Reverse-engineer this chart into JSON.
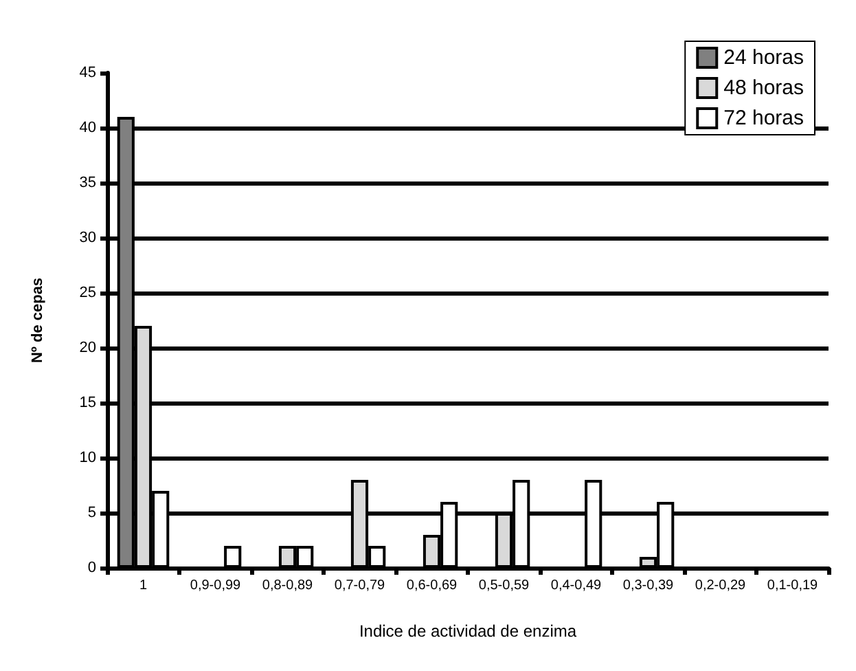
{
  "chart_data": {
    "type": "bar",
    "xlabel": "Indice de actividad de enzima",
    "ylabel": "Nº de cepas",
    "categories": [
      "1",
      "0,9-0,99",
      "0,8-0,89",
      "0,7-0,79",
      "0,6-0,69",
      "0,5-0,59",
      "0,4-0,49",
      "0,3-0,39",
      "0,2-0,29",
      "0,1-0,19"
    ],
    "series": [
      {
        "name": "24 horas",
        "color": "#808080",
        "values": [
          41,
          0,
          0,
          0,
          0,
          0,
          0,
          0,
          0,
          0
        ]
      },
      {
        "name": "48 horas",
        "color": "#d9d9d9",
        "values": [
          22,
          0,
          2,
          8,
          3,
          5,
          0,
          1,
          0,
          0
        ]
      },
      {
        "name": "72 horas",
        "color": "#ffffff",
        "values": [
          7,
          2,
          2,
          2,
          6,
          8,
          8,
          6,
          0,
          0
        ]
      }
    ],
    "ylim": [
      0,
      45
    ],
    "yticks": [
      0,
      5,
      10,
      15,
      20,
      25,
      30,
      35,
      40,
      45
    ],
    "grid": "y",
    "legend": "top right"
  }
}
